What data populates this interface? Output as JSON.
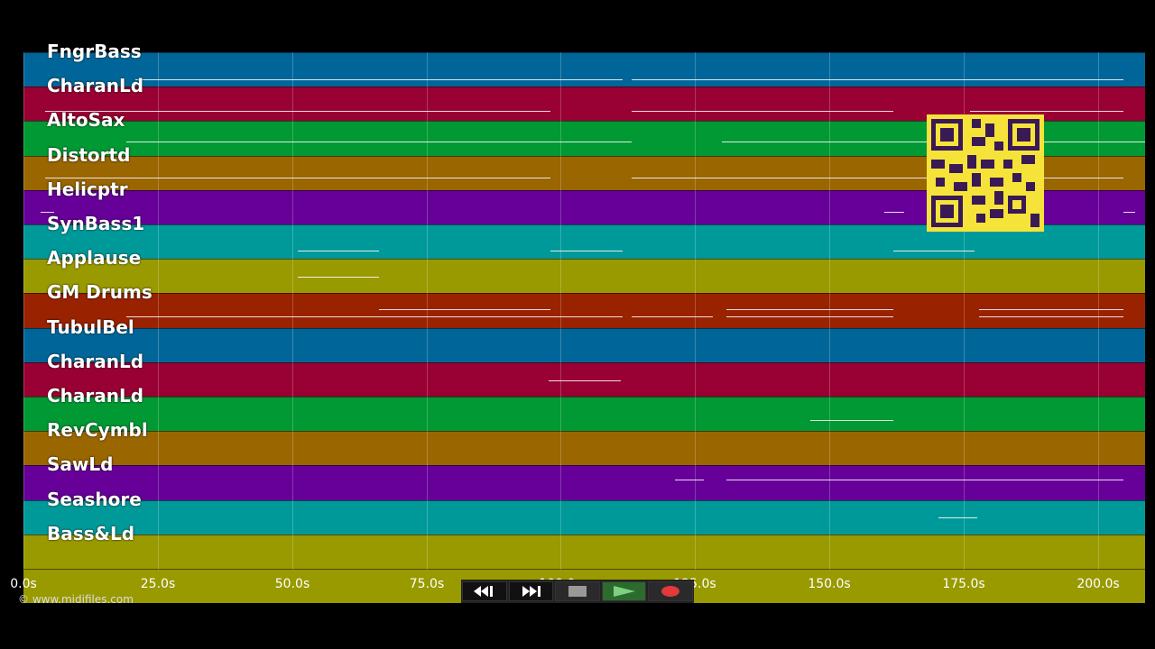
{
  "tracks": [
    {
      "name": "FngrBass",
      "color": "#006699"
    },
    {
      "name": "CharanLd",
      "color": "#990033"
    },
    {
      "name": "AltoSax",
      "color": "#009933"
    },
    {
      "name": "Distortd",
      "color": "#996600"
    },
    {
      "name": "Helicptr",
      "color": "#660099"
    },
    {
      "name": "SynBass1",
      "color": "#009999"
    },
    {
      "name": "Applause",
      "color": "#999900"
    },
    {
      "name": "GM Drums",
      "color": "#992200"
    },
    {
      "name": "TubulBel",
      "color": "#006699"
    },
    {
      "name": "CharanLd",
      "color": "#990033"
    },
    {
      "name": "CharanLd",
      "color": "#009933"
    },
    {
      "name": "RevCymbl",
      "color": "#996600"
    },
    {
      "name": "SawLd",
      "color": "#660099"
    },
    {
      "name": "Seashore",
      "color": "#009999"
    },
    {
      "name": "Bass&Ld",
      "color": "#999900"
    },
    {
      "name": "",
      "color": "#999900"
    }
  ],
  "time_axis": {
    "ticks": [
      "0.0s",
      "25.0s",
      "50.0s",
      "75.0s",
      "100.0s",
      "125.0s",
      "150.0s",
      "175.0s",
      "200.0s"
    ]
  },
  "copyright": "© www.midifiles.com",
  "controls": {
    "rewind": "rewind-icon",
    "fast_forward": "fast-forward-icon",
    "stop": "stop-icon",
    "play": "play-icon",
    "record": "record-icon"
  }
}
